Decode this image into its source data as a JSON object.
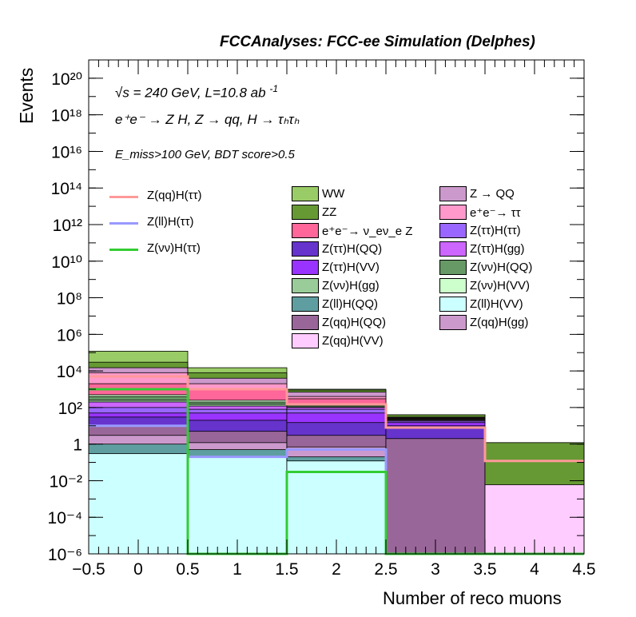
{
  "title": "FCCAnalyses: FCC-ee Simulation (Delphes)",
  "annotations": {
    "energy": "√s = 240 GeV, L=10.8 ab",
    "energy_sup": "-1",
    "process": "e⁺e⁻ → Z H, Z → qq, H → τₕτₕ",
    "selection": "E_miss>100 GeV, BDT score>0.5"
  },
  "chart_data": {
    "type": "bar",
    "stacked": true,
    "log_y": true,
    "xlabel": "Number of reco muons",
    "ylabel": "Events",
    "xlim": [
      -0.5,
      4.5
    ],
    "ylim": [
      1e-06,
      1e+21
    ],
    "bin_edges": [
      -0.5,
      0.5,
      1.5,
      2.5,
      3.5,
      4.5
    ],
    "x_ticks": [
      "−0.5",
      "0",
      "0.5",
      "1",
      "1.5",
      "2",
      "2.5",
      "3",
      "3.5",
      "4",
      "4.5"
    ],
    "y_ticks": [
      "10⁻⁶",
      "10⁻⁴",
      "10⁻²",
      "1",
      "10²",
      "10⁴",
      "10⁶",
      "10⁸",
      "10¹⁰",
      "10¹²",
      "10¹⁴",
      "10¹⁶",
      "10¹⁸",
      "10²⁰"
    ],
    "stack_totals": [
      120000,
      15000,
      1000,
      40,
      1.2
    ],
    "stack": [
      {
        "name": "Z(ll)H(VV)",
        "color": "#ccffff",
        "tops": [
          0.3,
          0.2,
          0.12,
          0,
          0
        ]
      },
      {
        "name": "Z(ll)H(QQ)",
        "color": "#5f9ea0",
        "tops": [
          1.0,
          0.5,
          0.2,
          0,
          0
        ]
      },
      {
        "name": "Z(qq)H(gg)",
        "color": "#cc99cc",
        "tops": [
          3.0,
          1.2,
          0.7,
          1e-06,
          0
        ]
      },
      {
        "name": "Z(qq)H(VV)",
        "color": "#ffccff",
        "tops": [
          0,
          0,
          0,
          0,
          0.006
        ]
      },
      {
        "name": "Z(qq)H(QQ)",
        "color": "#996699",
        "tops": [
          10,
          5,
          3,
          2,
          0
        ]
      },
      {
        "name": "Z(ττ)H(QQ)",
        "color": "#6633cc",
        "tops": [
          30,
          20,
          15,
          10,
          0
        ]
      },
      {
        "name": "Z(ττ)H(VV)",
        "color": "#9933ff",
        "tops": [
          50,
          50,
          50,
          15,
          0
        ]
      },
      {
        "name": "Z(ττ)H(ττ)",
        "color": "#9966ff",
        "tops": [
          100,
          80,
          80,
          18,
          0
        ]
      },
      {
        "name": "Z(ττ)H(gg)",
        "color": "#cc66ff",
        "tops": [
          200,
          120,
          100,
          20,
          0
        ]
      },
      {
        "name": "Z(νν)H(gg)",
        "color": "#99cc99",
        "tops": [
          250,
          150,
          110,
          22,
          0
        ]
      },
      {
        "name": "Z(νν)H(QQ)",
        "color": "#669966",
        "tops": [
          400,
          200,
          130,
          24,
          0
        ]
      },
      {
        "name": "Z(νν)H(VV)",
        "color": "#ccffcc",
        "tops": [
          500,
          250,
          140,
          25,
          0
        ]
      },
      {
        "name": "e⁺e⁻→ ν_eν_e Z",
        "color": "#ff6699",
        "tops": [
          2000,
          1000,
          300,
          27,
          0
        ]
      },
      {
        "name": "e⁺e⁻ → ττ",
        "color": "#ff99cc",
        "tops": [
          8000,
          2000,
          400,
          28,
          0
        ]
      },
      {
        "name": "Z → QQ",
        "color": "#cc99cc",
        "tops": [
          15000,
          4000,
          700,
          30,
          0
        ]
      },
      {
        "name": "ZZ",
        "color": "#669933",
        "tops": [
          30000,
          8000,
          900,
          40,
          1.2
        ]
      },
      {
        "name": "WW",
        "color": "#99cc66",
        "tops": [
          120000,
          15000,
          1000,
          40,
          1.2
        ]
      }
    ],
    "lines": [
      {
        "name": "Z(qq)H(ττ)",
        "color": "#ff9999",
        "values": [
          5000,
          1000,
          150,
          8,
          0.12
        ]
      },
      {
        "name": "Z(ll)H(ττ)",
        "color": "#9999ff",
        "values": [
          10,
          0.2,
          0.5,
          1e-06,
          1e-06
        ]
      },
      {
        "name": "Z(νν)H(ττ)",
        "color": "#33cc33",
        "values": [
          1000,
          1e-06,
          0.03,
          1e-06,
          1e-06
        ]
      }
    ],
    "legend_lines": [
      "Z(qq)H(ττ)",
      "Z(ll)H(ττ)",
      "Z(νν)H(ττ)"
    ],
    "legend_col1": [
      {
        "label": "WW",
        "color": "#99cc66"
      },
      {
        "label": "ZZ",
        "color": "#669933"
      },
      {
        "label": "e⁺e⁻→ ν_eν_e Z",
        "color": "#ff6699"
      },
      {
        "label": "Z(ττ)H(QQ)",
        "color": "#6633cc"
      },
      {
        "label": "Z(ττ)H(VV)",
        "color": "#9933ff"
      },
      {
        "label": "Z(νν)H(gg)",
        "color": "#99cc99"
      },
      {
        "label": "Z(ll)H(QQ)",
        "color": "#5f9ea0"
      },
      {
        "label": "Z(qq)H(QQ)",
        "color": "#996699"
      },
      {
        "label": "Z(qq)H(VV)",
        "color": "#ffccff"
      }
    ],
    "legend_col2": [
      {
        "label": "Z → QQ",
        "color": "#cc99cc"
      },
      {
        "label": "e⁺e⁻→ ττ",
        "color": "#ff99cc"
      },
      {
        "label": "Z(ττ)H(ττ)",
        "color": "#9966ff"
      },
      {
        "label": "Z(ττ)H(gg)",
        "color": "#cc66ff"
      },
      {
        "label": "Z(νν)H(QQ)",
        "color": "#669966"
      },
      {
        "label": "Z(νν)H(VV)",
        "color": "#ccffcc"
      },
      {
        "label": "Z(ll)H(VV)",
        "color": "#ccffff"
      },
      {
        "label": "Z(qq)H(gg)",
        "color": "#cc99cc"
      }
    ]
  }
}
